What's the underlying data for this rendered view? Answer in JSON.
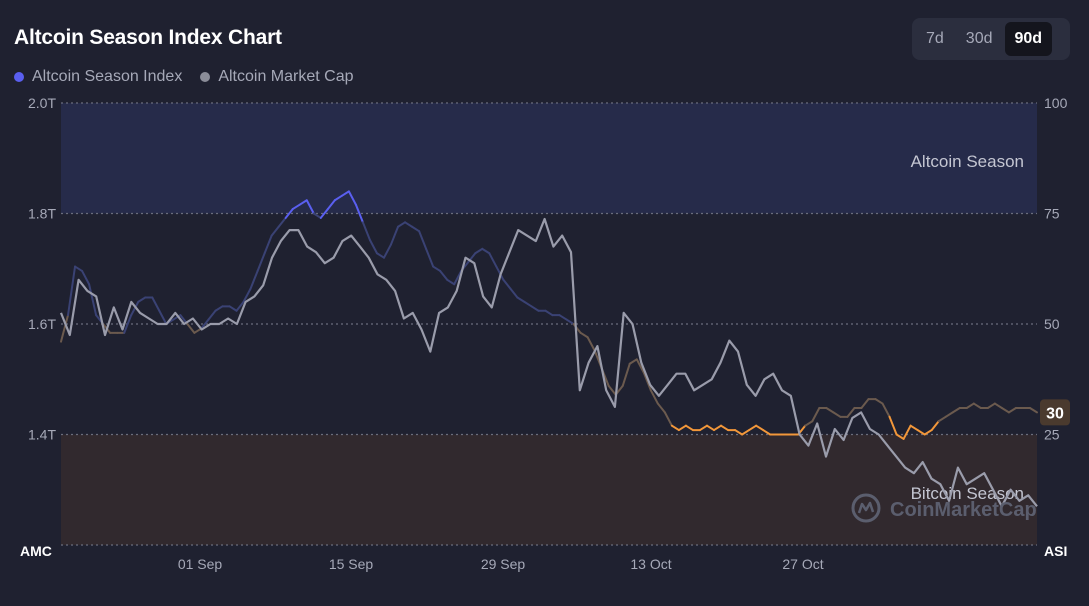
{
  "header": {
    "title": "Altcoin Season Index Chart",
    "ranges": [
      "7d",
      "30d",
      "90d"
    ],
    "active_range": "90d"
  },
  "legend": [
    {
      "label": "Altcoin Season Index",
      "color": "#5a5ff0"
    },
    {
      "label": "Altcoin Market Cap",
      "color": "#8b8d99"
    }
  ],
  "zones": {
    "altcoin_label": "Altcoin Season",
    "bitcoin_label": "Bitcoin Season",
    "altcoin_color": "#262b4a",
    "bitcoin_color": "#31292e"
  },
  "watermark": "CoinMarketCap",
  "colors": {
    "background": "#1f2130",
    "index_high": "#5a5ff0",
    "index_mid": "#6b5a4e",
    "index_low": "#f2973a",
    "market_cap": "#9a9cab"
  },
  "chart_data": {
    "type": "line",
    "x_axis": {
      "start_label": "AMC",
      "ticks": [
        "01 Sep",
        "15 Sep",
        "29 Sep",
        "13 Oct",
        "27 Oct"
      ],
      "end_label": "ASI"
    },
    "y_left": {
      "ticks": [
        "2.0T",
        "1.8T",
        "1.6T",
        "1.4T"
      ],
      "min": 1.2,
      "max": 2.0
    },
    "y_right": {
      "ticks": [
        "100",
        "75",
        "50",
        "25"
      ],
      "min": 0,
      "max": 100
    },
    "current_value_badge": "30",
    "series": [
      {
        "name": "Altcoin Season Index",
        "axis": "right",
        "values": [
          46,
          52,
          63,
          62,
          59,
          52,
          50,
          48,
          48,
          48,
          52,
          55,
          56,
          56,
          53,
          50,
          51,
          52,
          50,
          48,
          49,
          51,
          53,
          54,
          54,
          53,
          55,
          58,
          62,
          66,
          70,
          72,
          74,
          76,
          77,
          78,
          75,
          74,
          76,
          78,
          79,
          80,
          77,
          73,
          69,
          66,
          65,
          68,
          72,
          73,
          72,
          71,
          67,
          63,
          62,
          60,
          59,
          62,
          64,
          66,
          67,
          66,
          63,
          60,
          58,
          56,
          55,
          54,
          53,
          53,
          52,
          52,
          51,
          50,
          48,
          47,
          44,
          40,
          36,
          34,
          36,
          41,
          42,
          39,
          35,
          32,
          30,
          27,
          26,
          27,
          26,
          26,
          27,
          26,
          27,
          26,
          26,
          25,
          26,
          27,
          26,
          25,
          25,
          25,
          25,
          25,
          27,
          28,
          31,
          31,
          30,
          29,
          29,
          31,
          31,
          33,
          33,
          32,
          29,
          25,
          24,
          27,
          26,
          25,
          26,
          28,
          29,
          30,
          31,
          31,
          32,
          31,
          31,
          32,
          31,
          30,
          31,
          31,
          31,
          30
        ]
      },
      {
        "name": "Altcoin Market Cap",
        "axis": "left",
        "values": [
          1.62,
          1.58,
          1.68,
          1.66,
          1.65,
          1.58,
          1.63,
          1.59,
          1.64,
          1.62,
          1.61,
          1.6,
          1.6,
          1.62,
          1.6,
          1.61,
          1.59,
          1.6,
          1.6,
          1.61,
          1.6,
          1.64,
          1.65,
          1.67,
          1.72,
          1.75,
          1.77,
          1.77,
          1.74,
          1.73,
          1.71,
          1.72,
          1.75,
          1.76,
          1.74,
          1.72,
          1.69,
          1.68,
          1.66,
          1.61,
          1.62,
          1.59,
          1.55,
          1.62,
          1.63,
          1.66,
          1.72,
          1.71,
          1.65,
          1.63,
          1.69,
          1.73,
          1.77,
          1.76,
          1.75,
          1.79,
          1.74,
          1.76,
          1.73,
          1.48,
          1.53,
          1.56,
          1.48,
          1.45,
          1.62,
          1.6,
          1.53,
          1.49,
          1.47,
          1.49,
          1.51,
          1.51,
          1.48,
          1.49,
          1.5,
          1.53,
          1.57,
          1.55,
          1.49,
          1.47,
          1.5,
          1.51,
          1.48,
          1.47,
          1.4,
          1.38,
          1.42,
          1.36,
          1.41,
          1.39,
          1.43,
          1.44,
          1.41,
          1.4,
          1.38,
          1.36,
          1.34,
          1.33,
          1.35,
          1.32,
          1.31,
          1.28,
          1.34,
          1.31,
          1.32,
          1.33,
          1.3,
          1.27,
          1.3,
          1.28,
          1.29,
          1.27
        ]
      }
    ]
  }
}
